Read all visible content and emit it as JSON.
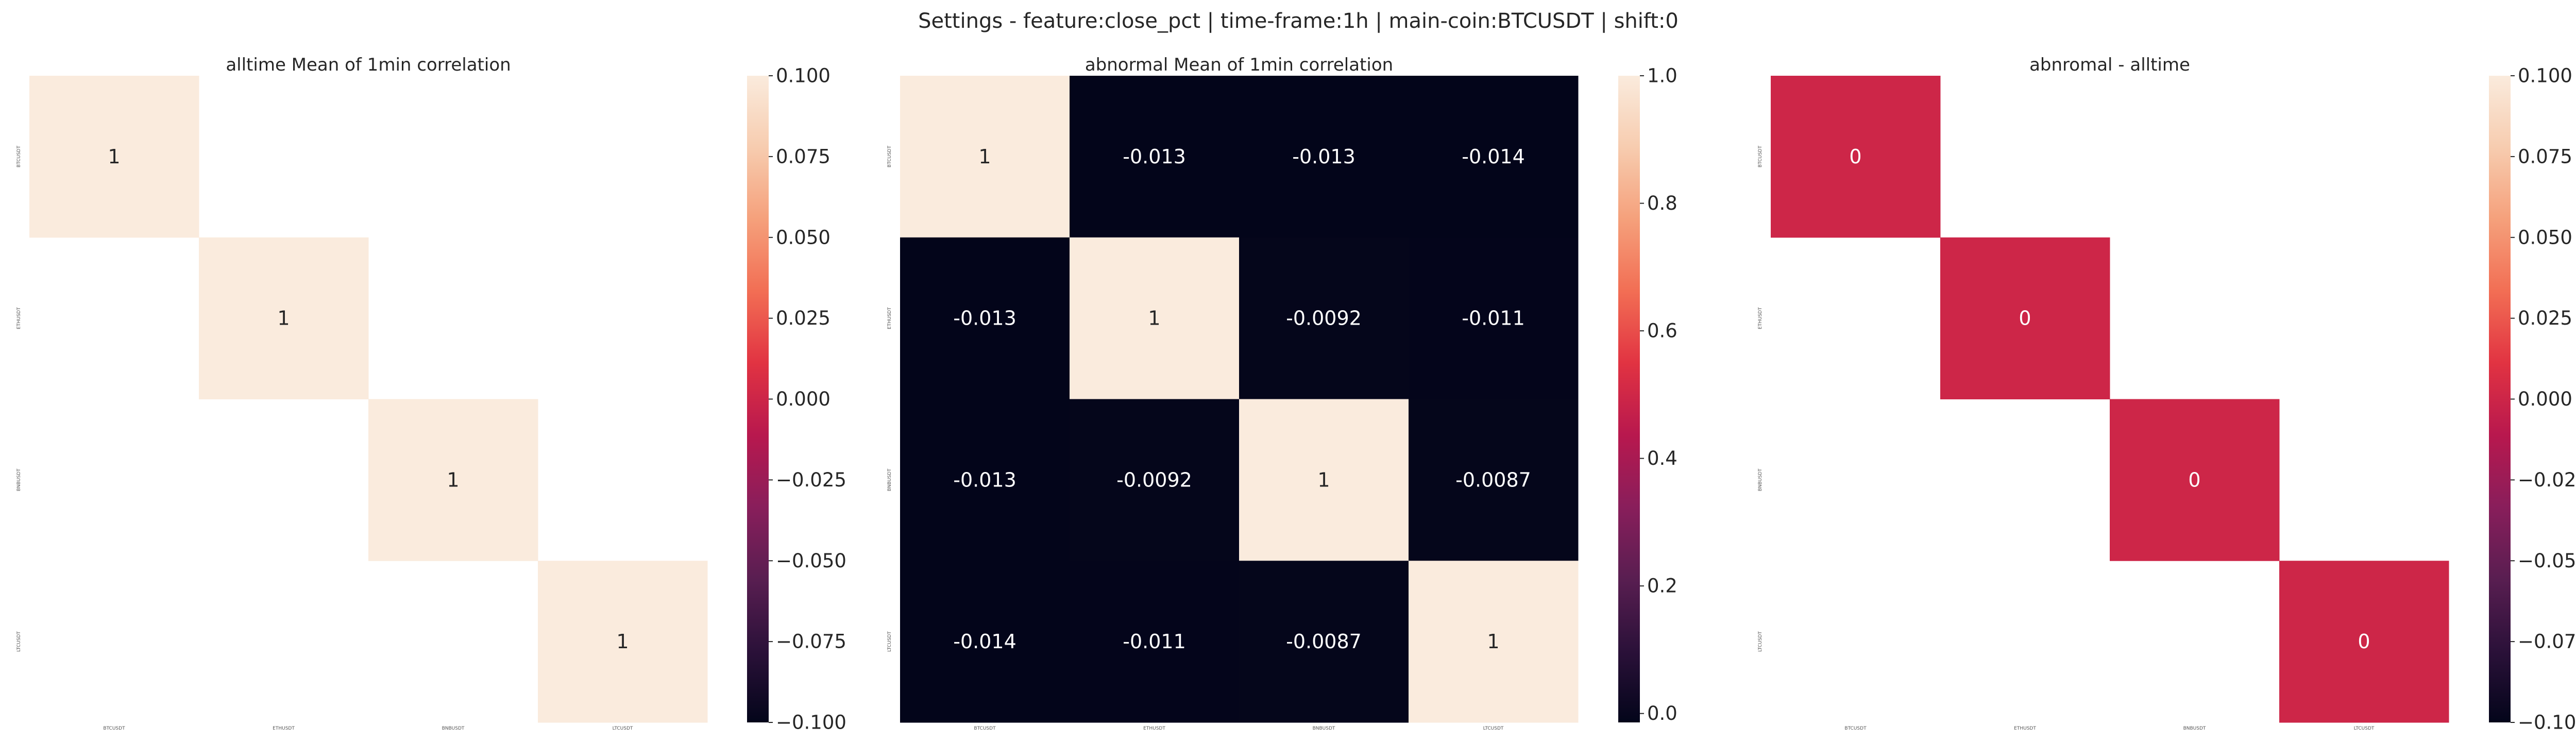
{
  "suptitle": "Settings - feature:close_pct | time-frame:1h | main-coin:BTCUSDT | shift:0",
  "colormap": [
    "#03051a",
    "#2b1139",
    "#591e51",
    "#891e5b",
    "#b8184e",
    "#e13342",
    "#f26e54",
    "#f5a07b",
    "#f7ccaf",
    "#faebdd"
  ],
  "chart_data": [
    {
      "type": "heatmap",
      "title": "alltime Mean of 1min correlation",
      "x_labels": [
        "BTCUSDT",
        "ETHUSDT",
        "BNBUSDT",
        "LTCUSDT"
      ],
      "y_labels": [
        "BTCUSDT",
        "ETHUSDT",
        "BNBUSDT",
        "LTCUSDT"
      ],
      "values": [
        [
          1,
          null,
          null,
          null
        ],
        [
          null,
          1,
          null,
          null
        ],
        [
          null,
          null,
          1,
          null
        ],
        [
          null,
          null,
          null,
          1
        ]
      ],
      "annotations": [
        [
          "1",
          "",
          "",
          ""
        ],
        [
          "",
          "1",
          "",
          ""
        ],
        [
          "",
          "",
          "1",
          ""
        ],
        [
          "",
          "",
          "",
          "1"
        ]
      ],
      "colorbar": {
        "vmin": -0.1,
        "vmax": 0.1,
        "ticks": [
          0.1,
          0.075,
          0.05,
          0.025,
          0.0,
          -0.025,
          -0.05,
          -0.075,
          -0.1
        ],
        "tick_labels": [
          "0.100",
          "0.075",
          "0.050",
          "0.025",
          "0.000",
          "−0.025",
          "−0.050",
          "−0.075",
          "−0.100"
        ]
      }
    },
    {
      "type": "heatmap",
      "title": "abnormal Mean of 1min correlation",
      "x_labels": [
        "BTCUSDT",
        "ETHUSDT",
        "BNBUSDT",
        "LTCUSDT"
      ],
      "y_labels": [
        "BTCUSDT",
        "ETHUSDT",
        "BNBUSDT",
        "LTCUSDT"
      ],
      "values": [
        [
          1,
          -0.013,
          -0.013,
          -0.014
        ],
        [
          -0.013,
          1,
          -0.0092,
          -0.011
        ],
        [
          -0.013,
          -0.0092,
          1,
          -0.0087
        ],
        [
          -0.014,
          -0.011,
          -0.0087,
          1
        ]
      ],
      "annotations": [
        [
          "1",
          "-0.013",
          "-0.013",
          "-0.014"
        ],
        [
          "-0.013",
          "1",
          "-0.0092",
          "-0.011"
        ],
        [
          "-0.013",
          "-0.0092",
          "1",
          "-0.0087"
        ],
        [
          "-0.014",
          "-0.011",
          "-0.0087",
          "1"
        ]
      ],
      "colorbar": {
        "vmin": -0.014,
        "vmax": 1.0,
        "ticks": [
          1.0,
          0.8,
          0.6,
          0.4,
          0.2,
          0.0
        ],
        "tick_labels": [
          "1.0",
          "0.8",
          "0.6",
          "0.4",
          "0.2",
          "0.0"
        ]
      }
    },
    {
      "type": "heatmap",
      "title": "abnromal - alltime",
      "x_labels": [
        "BTCUSDT",
        "ETHUSDT",
        "BNBUSDT",
        "LTCUSDT"
      ],
      "y_labels": [
        "BTCUSDT",
        "ETHUSDT",
        "BNBUSDT",
        "LTCUSDT"
      ],
      "values": [
        [
          0,
          null,
          null,
          null
        ],
        [
          null,
          0,
          null,
          null
        ],
        [
          null,
          null,
          0,
          null
        ],
        [
          null,
          null,
          null,
          0
        ]
      ],
      "annotations": [
        [
          "0",
          "",
          "",
          ""
        ],
        [
          "",
          "0",
          "",
          ""
        ],
        [
          "",
          "",
          "0",
          ""
        ],
        [
          "",
          "",
          "",
          "0"
        ]
      ],
      "colorbar": {
        "vmin": -0.1,
        "vmax": 0.1,
        "ticks": [
          0.1,
          0.075,
          0.05,
          0.025,
          0.0,
          -0.025,
          -0.05,
          -0.075,
          -0.1
        ],
        "tick_labels": [
          "0.100",
          "0.075",
          "0.050",
          "0.025",
          "0.000",
          "−0.025",
          "−0.050",
          "−0.075",
          "−0.100"
        ]
      }
    }
  ]
}
